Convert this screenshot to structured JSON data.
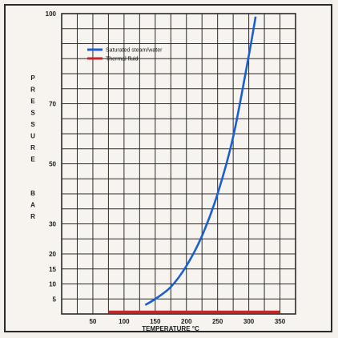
{
  "chart_data": {
    "type": "line",
    "title": "",
    "xlabel": "TEMPERATURE °C",
    "ylabel": "PRESSURE BAR",
    "xlim": [
      0,
      375
    ],
    "ylim": [
      0,
      100
    ],
    "x_ticks": [
      "50",
      "100",
      "150",
      "200",
      "250",
      "300",
      "350"
    ],
    "x_tick_values": [
      50,
      100,
      150,
      200,
      250,
      300,
      350
    ],
    "y_ticks": [
      "5",
      "10",
      "15",
      "20",
      "30",
      "50",
      "70",
      "100"
    ],
    "y_tick_values": [
      5,
      10,
      15,
      20,
      30,
      50,
      70,
      100
    ],
    "grid": true,
    "legend_position": "top-left",
    "series": [
      {
        "name": "Saturated steam/water",
        "color": "#1a5fd0",
        "x": [
          134,
          150,
          175,
          200,
          225,
          250,
          275,
          300,
          311
        ],
        "y": [
          3,
          5,
          9,
          16,
          26,
          40,
          59,
          86,
          99
        ]
      },
      {
        "name": "Thermal fluid",
        "color": "#c0282a",
        "x": [
          75,
          350
        ],
        "y": [
          0.6,
          0.6
        ]
      }
    ]
  }
}
